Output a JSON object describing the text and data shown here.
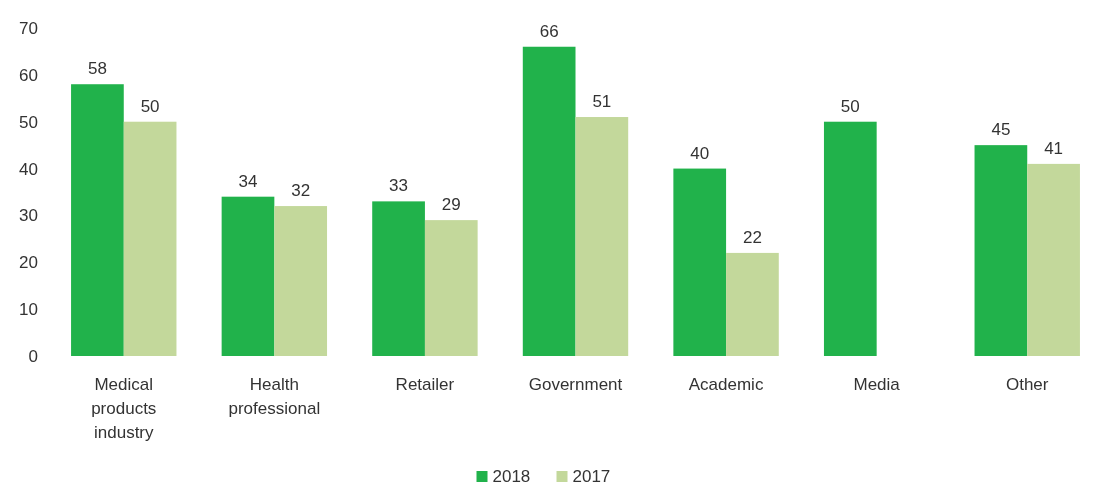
{
  "chart_data": {
    "type": "bar",
    "categories": [
      "Medical products industry",
      "Health professional",
      "Retailer",
      "Government",
      "Academic",
      "Media",
      "Other"
    ],
    "series": [
      {
        "name": "2018",
        "color": "#21b24b",
        "values": [
          58,
          34,
          33,
          66,
          40,
          50,
          45
        ]
      },
      {
        "name": "2017",
        "color": "#c3d89b",
        "values": [
          50,
          32,
          29,
          51,
          22,
          null,
          41
        ]
      }
    ],
    "ylim": [
      0,
      70
    ],
    "yticks": [
      0,
      10,
      20,
      30,
      40,
      50,
      60,
      70
    ],
    "data_labels": true,
    "legend": "bottom",
    "grid": false
  }
}
